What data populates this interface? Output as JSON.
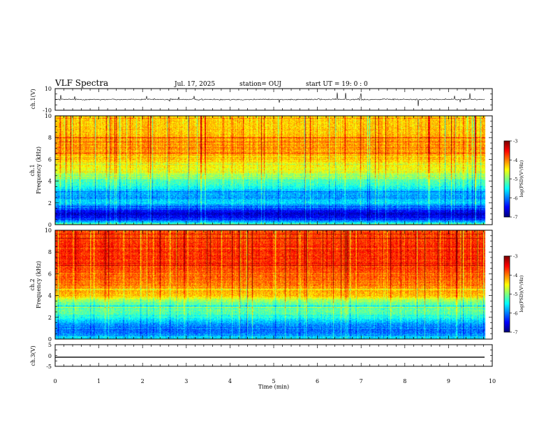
{
  "header": {
    "title": "VLF Spectra",
    "date": "Jul. 17, 2025",
    "station": "station= OUJ",
    "start": "start  UT =   19: 0  : 0"
  },
  "chart_data": [
    {
      "type": "line",
      "name": "ch1-waveform",
      "ylabel": "ch.1(V)",
      "ylim": [
        -10,
        10
      ],
      "yticks": [
        "10",
        "-10"
      ],
      "baseline": 0,
      "noise_amplitude": 1.5
    },
    {
      "type": "heatmap",
      "name": "ch1-spectrogram",
      "ylabel_top": "ch.1",
      "ylabel": "Frequency (kHz)",
      "ylim": [
        0,
        10
      ],
      "yticks": [
        "0",
        "2",
        "4",
        "6",
        "8",
        "10"
      ],
      "colorbar": {
        "label": "log(PSD)(V²/Hz)",
        "range": [
          -7,
          -3
        ],
        "ticks": [
          "-3",
          "-4",
          "-5",
          "-6",
          "-7"
        ]
      },
      "profile": [
        {
          "f": 0.0,
          "v": -5.0
        },
        {
          "f": 0.5,
          "v": -6.4
        },
        {
          "f": 1.0,
          "v": -6.7
        },
        {
          "f": 1.5,
          "v": -6.2
        },
        {
          "f": 2.0,
          "v": -5.6
        },
        {
          "f": 2.5,
          "v": -5.9
        },
        {
          "f": 3.0,
          "v": -5.8
        },
        {
          "f": 3.5,
          "v": -5.4
        },
        {
          "f": 4.0,
          "v": -5.2
        },
        {
          "f": 5.0,
          "v": -4.6
        },
        {
          "f": 6.0,
          "v": -4.3
        },
        {
          "f": 7.0,
          "v": -4.1
        },
        {
          "f": 8.0,
          "v": -4.2
        },
        {
          "f": 9.0,
          "v": -4.3
        },
        {
          "f": 10.0,
          "v": -4.4
        }
      ]
    },
    {
      "type": "heatmap",
      "name": "ch2-spectrogram",
      "ylabel_top": "ch.2",
      "ylabel": "Frequency (kHz)",
      "ylim": [
        0,
        10
      ],
      "yticks": [
        "0",
        "2",
        "4",
        "6",
        "8",
        "10"
      ],
      "colorbar": {
        "label": "log(PSD)(V²/Hz)",
        "range": [
          -7,
          -3
        ],
        "ticks": [
          "-3",
          "-4",
          "-5",
          "-6",
          "-7"
        ]
      },
      "profile": [
        {
          "f": 0.0,
          "v": -5.6
        },
        {
          "f": 0.5,
          "v": -6.0
        },
        {
          "f": 1.0,
          "v": -6.1
        },
        {
          "f": 1.5,
          "v": -5.8
        },
        {
          "f": 2.0,
          "v": -5.4
        },
        {
          "f": 2.5,
          "v": -5.1
        },
        {
          "f": 3.0,
          "v": -5.3
        },
        {
          "f": 3.5,
          "v": -4.9
        },
        {
          "f": 4.0,
          "v": -4.3
        },
        {
          "f": 5.0,
          "v": -4.0
        },
        {
          "f": 6.0,
          "v": -3.8
        },
        {
          "f": 7.0,
          "v": -3.7
        },
        {
          "f": 8.0,
          "v": -3.6
        },
        {
          "f": 9.0,
          "v": -3.7
        },
        {
          "f": 10.0,
          "v": -3.8
        }
      ]
    },
    {
      "type": "line",
      "name": "ch3-waveform",
      "ylabel": "ch.3(V)",
      "ylim": [
        -5,
        5
      ],
      "yticks": [
        "5",
        "0",
        "-5"
      ],
      "baseline": -0.8,
      "noise_amplitude": 0
    }
  ],
  "xaxis": {
    "label": "Time (min)",
    "range": [
      0,
      10
    ],
    "data_end": 9.82,
    "ticks": [
      "0",
      "1",
      "2",
      "3",
      "4",
      "5",
      "6",
      "7",
      "8",
      "9",
      "10"
    ]
  }
}
